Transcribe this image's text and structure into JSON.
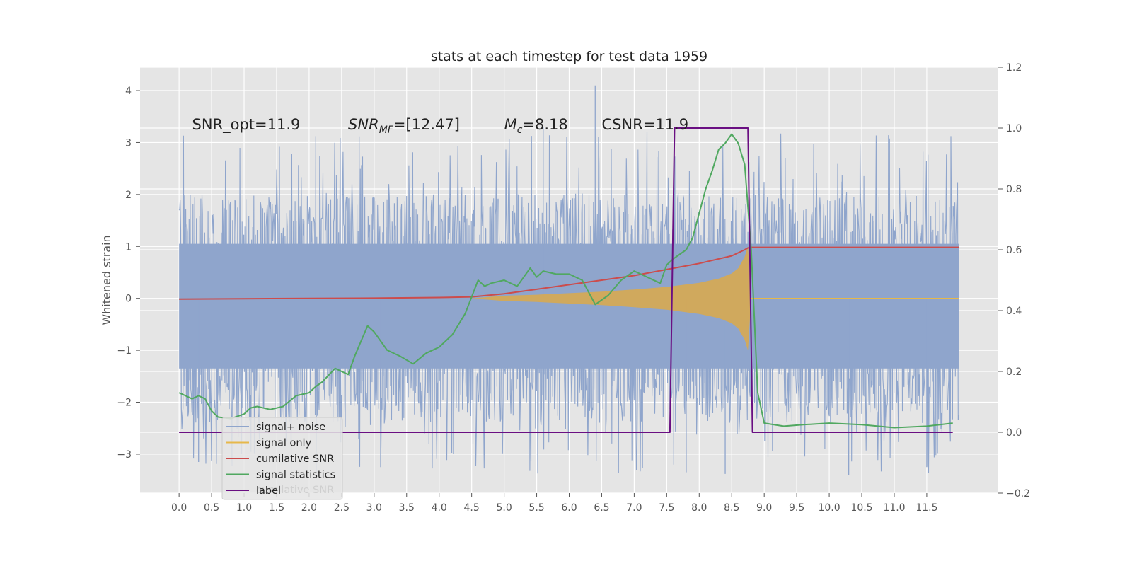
{
  "chart_data": {
    "type": "line",
    "title": "stats at each timestep for test data 1959",
    "ylabel": "Whitened strain",
    "xlim": [
      -0.6,
      12.6
    ],
    "ylim_left": [
      -3.75,
      4.45
    ],
    "ylim_right": [
      -0.2,
      1.2
    ],
    "x_ticks": [
      0.0,
      0.5,
      1.0,
      1.5,
      2.0,
      2.5,
      3.0,
      3.5,
      4.0,
      4.5,
      5.0,
      5.5,
      6.0,
      6.5,
      7.0,
      7.5,
      8.0,
      8.5,
      9.0,
      9.5,
      10.0,
      10.5,
      11.0,
      11.5
    ],
    "x_tick_labels": [
      "0.0",
      "0.5",
      "1.0",
      "1.5",
      "2.0",
      "2.5",
      "3.0",
      "3.5",
      "4.0",
      "4.5",
      "5.0",
      "5.5",
      "6.0",
      "6.5",
      "7.0",
      "7.5",
      "8.0",
      "8.5",
      "9.0",
      "9.5",
      "10.0",
      "10.5",
      "11.0",
      "11.5"
    ],
    "y_left_ticks": [
      -3,
      -2,
      -1,
      0,
      1,
      2,
      3,
      4
    ],
    "y_left_tick_labels": [
      "−3",
      "−2",
      "−1",
      "0",
      "1",
      "2",
      "3",
      "4"
    ],
    "y_right_ticks": [
      -0.2,
      0.0,
      0.2,
      0.4,
      0.6,
      0.8,
      1.0,
      1.2
    ],
    "y_right_tick_labels": [
      "−0.2",
      "0.0",
      "0.2",
      "0.4",
      "0.6",
      "0.8",
      "1.0",
      "1.2"
    ],
    "grid": true,
    "legend_position": "lower-left",
    "annotations": [
      {
        "text": "SNR_opt=11.9",
        "x": 0.2,
        "y": 3.35
      },
      {
        "text": "SNR_MF=[12.47]",
        "x": 2.6,
        "y": 3.35
      },
      {
        "text": "M_c=8.18",
        "x": 5.0,
        "y": 3.35
      },
      {
        "text": "CSNR=11.9",
        "x": 6.5,
        "y": 3.35
      }
    ],
    "series": [
      {
        "name": "signal+ noise",
        "axis": "left",
        "color": "#8fa5cc",
        "style": "noise",
        "x_range": [
          0.0,
          12.0
        ],
        "band_ylim": [
          -1.35,
          1.05
        ],
        "peak_range": [
          -3.4,
          4.1
        ]
      },
      {
        "name": "signal only",
        "axis": "left",
        "color": "#e6b84a",
        "style": "chirp",
        "x": [
          0.0,
          4.5,
          5.0,
          5.5,
          6.0,
          6.5,
          7.0,
          7.5,
          8.0,
          8.3,
          8.5,
          8.6,
          8.7,
          8.75,
          8.8,
          12.0
        ],
        "envelope": [
          0.0,
          0.0,
          0.05,
          0.07,
          0.1,
          0.13,
          0.17,
          0.22,
          0.3,
          0.38,
          0.48,
          0.58,
          0.8,
          1.0,
          0.0,
          0.0
        ]
      },
      {
        "name": "cumilative SNR",
        "axis": "right",
        "color": "#cc4c4c",
        "x": [
          0.0,
          1.0,
          2.0,
          3.0,
          4.0,
          4.5,
          5.0,
          5.5,
          6.0,
          6.5,
          7.0,
          7.5,
          8.0,
          8.5,
          8.7,
          8.75,
          8.8,
          12.0
        ],
        "y": [
          0.438,
          0.439,
          0.44,
          0.441,
          0.443,
          0.445,
          0.455,
          0.47,
          0.485,
          0.5,
          0.515,
          0.535,
          0.555,
          0.58,
          0.6,
          0.606,
          0.608,
          0.608
        ]
      },
      {
        "name": "signal statistics",
        "axis": "right",
        "color": "#50a860",
        "x": [
          0.0,
          0.1,
          0.2,
          0.3,
          0.4,
          0.5,
          0.6,
          0.8,
          1.0,
          1.1,
          1.2,
          1.4,
          1.6,
          1.8,
          2.0,
          2.1,
          2.2,
          2.4,
          2.5,
          2.6,
          2.7,
          2.8,
          2.9,
          3.0,
          3.2,
          3.4,
          3.6,
          3.8,
          4.0,
          4.2,
          4.4,
          4.6,
          4.7,
          4.8,
          5.0,
          5.2,
          5.4,
          5.5,
          5.6,
          5.8,
          6.0,
          6.2,
          6.4,
          6.6,
          6.8,
          7.0,
          7.2,
          7.4,
          7.5,
          7.6,
          7.8,
          7.9,
          8.0,
          8.1,
          8.2,
          8.3,
          8.4,
          8.5,
          8.6,
          8.7,
          8.8,
          8.9,
          9.0,
          9.3,
          9.6,
          10.0,
          10.5,
          11.0,
          11.5,
          11.9
        ],
        "y": [
          0.13,
          0.12,
          0.11,
          0.12,
          0.11,
          0.07,
          0.05,
          0.045,
          0.06,
          0.08,
          0.085,
          0.075,
          0.085,
          0.12,
          0.13,
          0.15,
          0.165,
          0.21,
          0.2,
          0.19,
          0.25,
          0.3,
          0.35,
          0.33,
          0.27,
          0.25,
          0.225,
          0.26,
          0.28,
          0.32,
          0.39,
          0.5,
          0.48,
          0.49,
          0.5,
          0.48,
          0.54,
          0.51,
          0.53,
          0.52,
          0.52,
          0.5,
          0.42,
          0.45,
          0.5,
          0.53,
          0.51,
          0.49,
          0.55,
          0.57,
          0.6,
          0.64,
          0.72,
          0.8,
          0.86,
          0.93,
          0.95,
          0.98,
          0.95,
          0.88,
          0.6,
          0.13,
          0.03,
          0.02,
          0.025,
          0.03,
          0.025,
          0.015,
          0.02,
          0.03
        ]
      },
      {
        "name": "label",
        "axis": "right",
        "color": "#6a0f82",
        "x": [
          0.0,
          7.55,
          7.62,
          8.75,
          8.82,
          11.9
        ],
        "y": [
          0.0,
          0.0,
          1.0,
          1.0,
          0.0,
          0.0
        ]
      }
    ],
    "legend_ghost_text": "cumilative SNR"
  }
}
